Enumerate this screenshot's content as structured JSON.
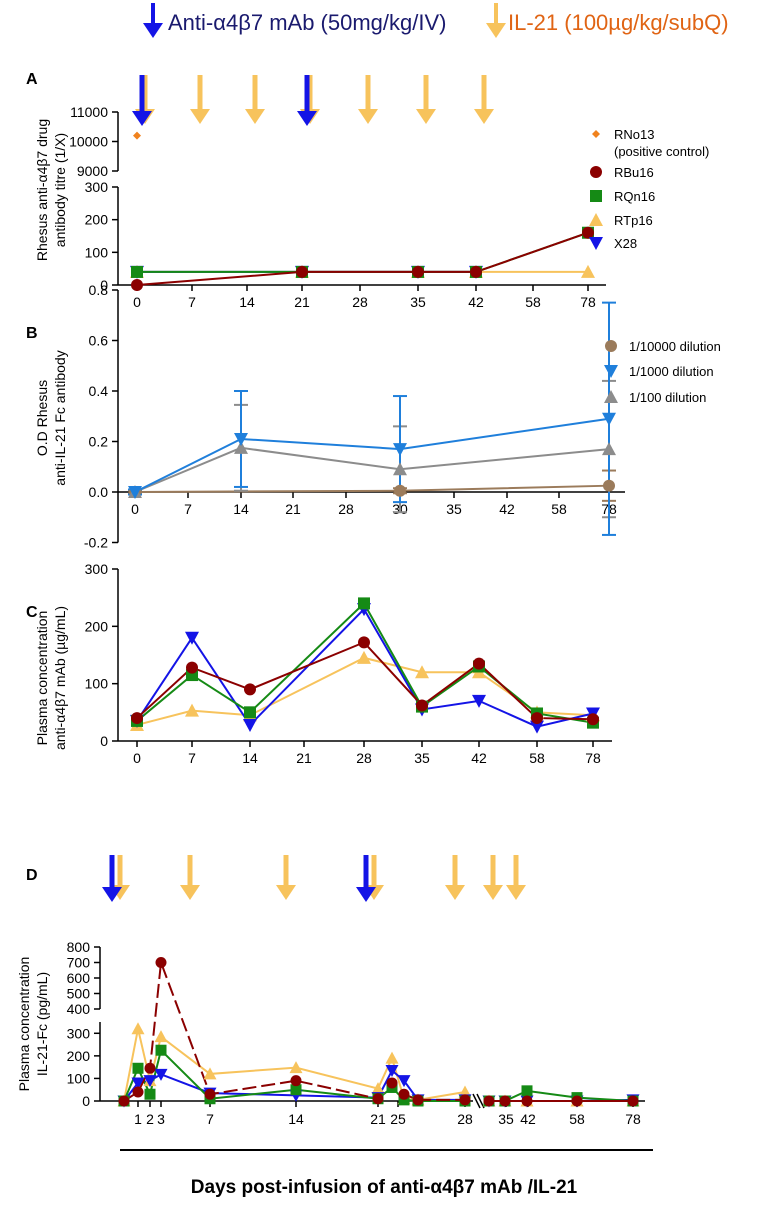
{
  "header": {
    "mab_label": "Anti-α4β7 mAb (50mg/kg/IV)",
    "il21_label": "IL-21 (100µg/kg/subQ)"
  },
  "footer": {
    "xlabel": "Days post-infusion of  anti-α4β7 mAb /IL-21"
  },
  "colors": {
    "mab_arrow": "#1414e6",
    "il21_arrow": "#f7c35c",
    "il21_text": "#e06414",
    "RNo13": "#f0821e",
    "RBu16": "#8b0000",
    "RQn16": "#158a15",
    "RTp16": "#f7c35c",
    "X28": "#1414e6",
    "dil_10000": "#9b7b5b",
    "dil_1000": "#1f7fdb",
    "dil_100": "#8c8c8c"
  },
  "chart_data": [
    {
      "panel": "A",
      "type": "line",
      "ylabel": "Rhesus anti-α4β7 drug antibody titre (1/X)",
      "categories": [
        "0",
        "7",
        "14",
        "21",
        "28",
        "35",
        "42",
        "58",
        "78"
      ],
      "ylim_lower": [
        0,
        300
      ],
      "ylim_upper": [
        9000,
        11000
      ],
      "yticks_lower": [
        0,
        100,
        200,
        300
      ],
      "yticks_upper": [
        9000,
        10000,
        11000
      ],
      "mab_doses_day": [
        "0",
        "21"
      ],
      "il21_doses_day": [
        "0",
        "7",
        "14",
        "21",
        "28",
        "35",
        "42"
      ],
      "series": [
        {
          "name": "RNo13",
          "sub": "(positive control)",
          "x": [
            "0"
          ],
          "values": [
            10200
          ],
          "marker": "diamond"
        },
        {
          "name": "RBu16",
          "x": [
            "0",
            "21",
            "35",
            "42",
            "78"
          ],
          "values": [
            0,
            40,
            40,
            40,
            160
          ],
          "marker": "circle"
        },
        {
          "name": "RQn16",
          "x": [
            "0",
            "21",
            "35",
            "42",
            "78"
          ],
          "values": [
            40,
            40,
            40,
            40,
            160
          ],
          "marker": "square"
        },
        {
          "name": "RTp16",
          "x": [
            "0",
            "21",
            "35",
            "42",
            "78"
          ],
          "values": [
            40,
            40,
            40,
            40,
            40
          ],
          "marker": "triangle-up"
        },
        {
          "name": "X28",
          "x": [
            "0",
            "21",
            "35",
            "42"
          ],
          "values": [
            40,
            40,
            40,
            40
          ],
          "marker": "triangle-down"
        }
      ]
    },
    {
      "panel": "B",
      "type": "line",
      "ylabel": [
        "O.D Rhesus",
        "anti-IL-21 Fc antibody"
      ],
      "categories": [
        "0",
        "7",
        "14",
        "21",
        "28",
        "30",
        "35",
        "42",
        "58",
        "78"
      ],
      "ylim": [
        -0.2,
        0.8
      ],
      "yticks": [
        "-0.2",
        "0.0",
        "0.2",
        "0.4",
        "0.6",
        "0.8"
      ],
      "series": [
        {
          "name": "1/10000 dilution",
          "x": [
            "0",
            "30",
            "78"
          ],
          "values": [
            0,
            0.005,
            0.025
          ],
          "err": [
            0.005,
            0.01,
            0.06
          ],
          "marker": "circle"
        },
        {
          "name": "1/1000 dilution",
          "x": [
            "0",
            "14",
            "30",
            "78"
          ],
          "values": [
            0,
            0.21,
            0.17,
            0.29
          ],
          "err": [
            0.01,
            0.19,
            0.21,
            0.46
          ],
          "marker": "triangle-down"
        },
        {
          "name": "1/100 dilution",
          "x": [
            "0",
            "14",
            "30",
            "78"
          ],
          "values": [
            0,
            0.175,
            0.09,
            0.17
          ],
          "err": [
            0.01,
            0.17,
            0.17,
            0.27
          ],
          "marker": "triangle-up"
        }
      ]
    },
    {
      "panel": "C",
      "type": "line",
      "ylabel": [
        "Plasma concentration",
        "anti-α4β7 mAb (µg/mL)"
      ],
      "categories": [
        "0",
        "7",
        "14",
        "21",
        "28",
        "35",
        "42",
        "58",
        "78"
      ],
      "ylim": [
        0,
        300
      ],
      "yticks": [
        0,
        100,
        200,
        300
      ],
      "series": [
        {
          "name": "RBu16",
          "x": [
            "0",
            "7",
            "14",
            "28",
            "35",
            "42",
            "58",
            "78"
          ],
          "values": [
            40,
            128,
            90,
            172,
            62,
            135,
            40,
            38
          ],
          "marker": "circle"
        },
        {
          "name": "RQn16",
          "x": [
            "0",
            "7",
            "14",
            "28",
            "35",
            "42",
            "58",
            "78"
          ],
          "values": [
            35,
            115,
            50,
            240,
            60,
            130,
            48,
            32
          ],
          "marker": "square"
        },
        {
          "name": "RTp16",
          "x": [
            "0",
            "7",
            "14",
            "28",
            "35",
            "42",
            "58",
            "78"
          ],
          "values": [
            28,
            53,
            45,
            145,
            120,
            120,
            50,
            45
          ],
          "marker": "triangle-up"
        },
        {
          "name": "X28",
          "x": [
            "0",
            "7",
            "14",
            "28",
            "35",
            "42",
            "58",
            "78"
          ],
          "values": [
            35,
            180,
            28,
            230,
            55,
            70,
            25,
            48
          ],
          "marker": "triangle-down"
        }
      ]
    },
    {
      "panel": "D",
      "type": "line",
      "ylabel": [
        "Plasma concentration",
        "IL-21-Fc (pg/mL)"
      ],
      "xtick_labels": [
        "1",
        "2",
        "3",
        "7",
        "14",
        "21",
        "25",
        "28",
        "35",
        "42",
        "58",
        "78"
      ],
      "ylim_lower": [
        0,
        350
      ],
      "ylim_upper": [
        400,
        800
      ],
      "yticks_lower": [
        0,
        100,
        200,
        300
      ],
      "yticks_upper": [
        400,
        500,
        600,
        700,
        800
      ],
      "mab_doses_day": [
        0,
        21
      ],
      "il21_doses_day": [
        0,
        3,
        14,
        21,
        28,
        35,
        42
      ],
      "series": [
        {
          "name": "RBu16",
          "x": [
            0,
            1,
            2,
            3,
            7,
            14,
            21,
            21.5,
            22.5,
            23.5,
            28,
            32,
            35,
            42,
            58,
            78
          ],
          "values": [
            0,
            40,
            145,
            700,
            30,
            90,
            10,
            80,
            30,
            5,
            5,
            0,
            0,
            0,
            0,
            0
          ],
          "marker": "circle"
        },
        {
          "name": "RQn16",
          "x": [
            0,
            1,
            2,
            3,
            7,
            14,
            21,
            21.5,
            22.5,
            23.5,
            28,
            32,
            35,
            42,
            58,
            78
          ],
          "values": [
            0,
            145,
            30,
            225,
            10,
            50,
            10,
            60,
            5,
            0,
            0,
            0,
            0,
            45,
            15,
            0
          ],
          "marker": "square"
        },
        {
          "name": "RTp16",
          "x": [
            0,
            1,
            2,
            3,
            7,
            14,
            21,
            21.5,
            22.5,
            23.5,
            28,
            32,
            35,
            42,
            58,
            78
          ],
          "values": [
            0,
            320,
            90,
            285,
            120,
            148,
            55,
            190,
            10,
            5,
            40,
            0,
            0,
            0,
            0,
            0
          ],
          "marker": "triangle-up"
        },
        {
          "name": "X28",
          "x": [
            0,
            1,
            2,
            3,
            7,
            14,
            21,
            21.5,
            22.5,
            23.5,
            28,
            32,
            35,
            42,
            58,
            78
          ],
          "values": [
            0,
            80,
            90,
            118,
            35,
            25,
            15,
            135,
            90,
            5,
            5,
            0,
            0,
            0,
            0,
            5
          ],
          "marker": "triangle-down"
        }
      ]
    }
  ]
}
